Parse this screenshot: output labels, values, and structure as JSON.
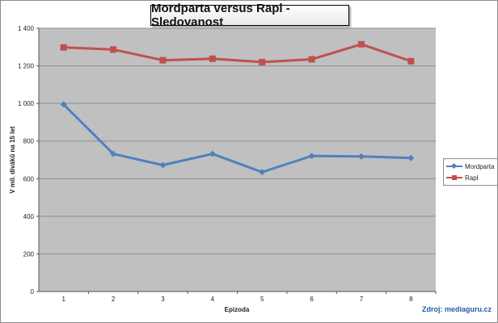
{
  "chart_data": {
    "type": "line",
    "title": "Mordparta versus Rapl - Sledovanost",
    "xlabel": "Epizoda",
    "ylabel": "V mil. diváků na 15 let",
    "categories": [
      "1",
      "2",
      "3",
      "4",
      "5",
      "6",
      "7",
      "8"
    ],
    "y_ticks": [
      "0",
      "200",
      "400",
      "600",
      "800",
      "1 000",
      "1 200",
      "1 400"
    ],
    "ylim": [
      0,
      1400
    ],
    "grid": true,
    "legend_position": "right",
    "series": [
      {
        "name": "Mordparta",
        "color": "#4f81bd",
        "marker": "diamond",
        "values": [
          995,
          732,
          672,
          732,
          635,
          721,
          718,
          710
        ]
      },
      {
        "name": "Rapl",
        "color": "#c0504d",
        "marker": "square",
        "values": [
          1298,
          1287,
          1230,
          1238,
          1220,
          1235,
          1315,
          1225
        ]
      }
    ]
  },
  "source": "Zdroj: mediaguru.cz",
  "colors": {
    "plot_area": "#c0c0c0",
    "gridline": "#8c8c8c",
    "source_text": "#1f5fa8"
  }
}
